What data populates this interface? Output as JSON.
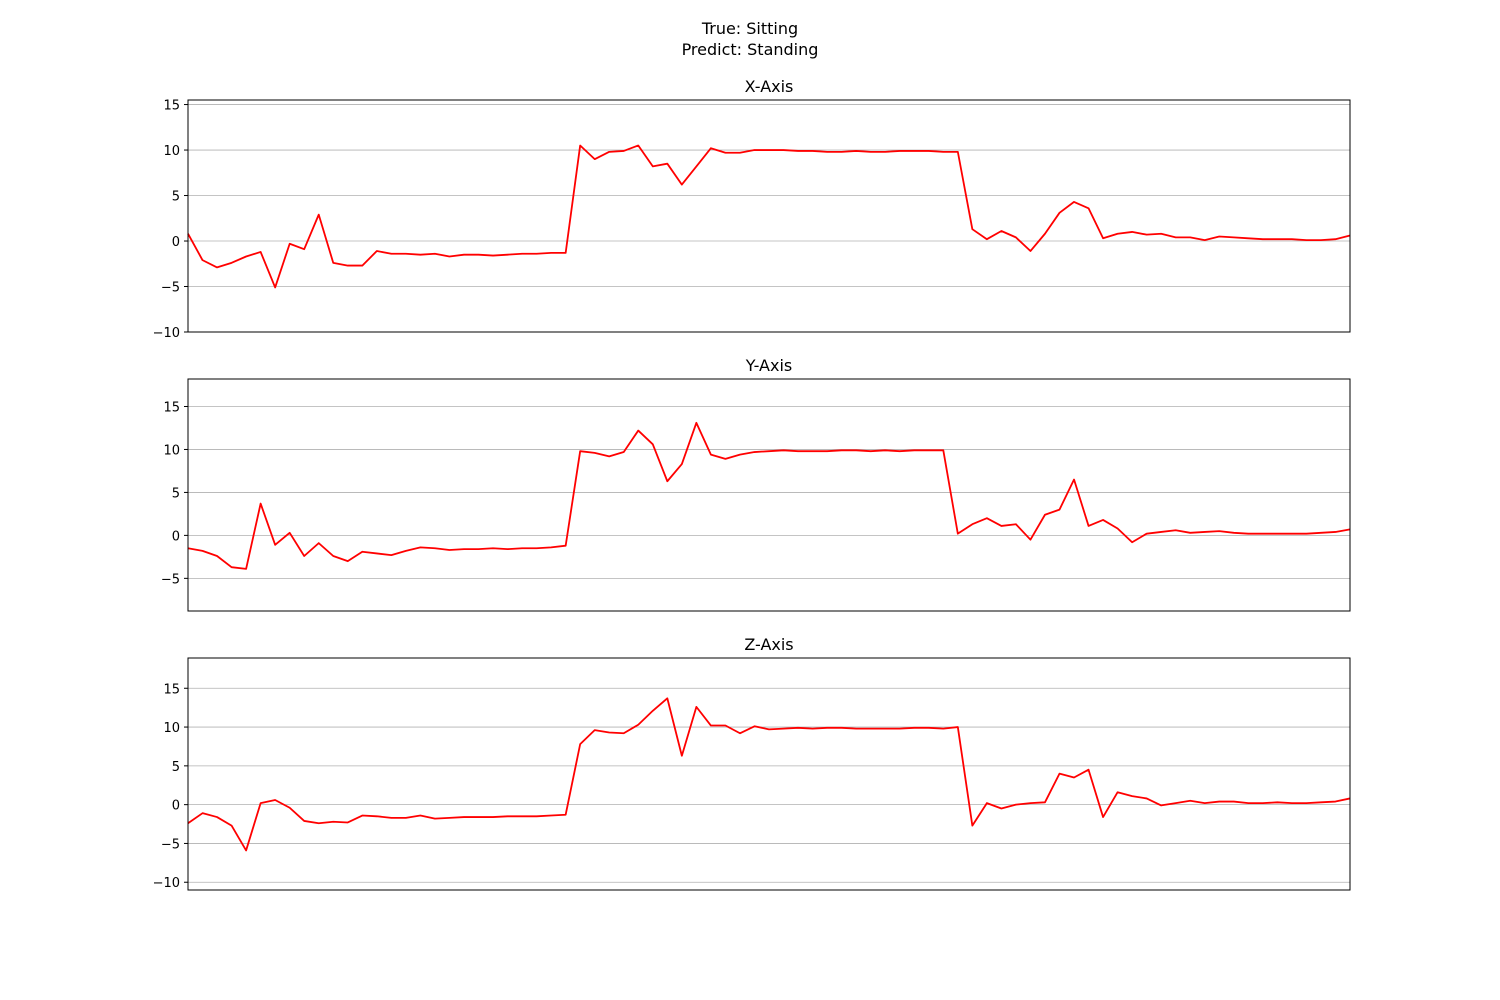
{
  "figure": {
    "title_line1": "True: Sitting",
    "title_line2": "Predict: Standing"
  },
  "chart_data": [
    {
      "type": "line",
      "title": "X-Axis",
      "ylim": [
        -10,
        15.5
      ],
      "yticks": [
        -10,
        -5,
        0,
        5,
        10,
        15
      ],
      "grid": true,
      "color": "#ff0000",
      "values": [
        0.8,
        -2.1,
        -2.9,
        -2.4,
        -1.7,
        -1.2,
        -5.1,
        -0.3,
        -0.9,
        2.9,
        -2.4,
        -2.7,
        -2.7,
        -1.1,
        -1.4,
        -1.4,
        -1.5,
        -1.4,
        -1.7,
        -1.5,
        -1.5,
        -1.6,
        -1.5,
        -1.4,
        -1.4,
        -1.3,
        -1.3,
        10.5,
        9.0,
        9.8,
        9.9,
        10.5,
        8.2,
        8.5,
        6.2,
        8.2,
        10.2,
        9.7,
        9.7,
        10.0,
        10.0,
        10.0,
        9.9,
        9.9,
        9.8,
        9.8,
        9.9,
        9.8,
        9.8,
        9.9,
        9.9,
        9.9,
        9.8,
        9.8,
        1.3,
        0.2,
        1.1,
        0.4,
        -1.1,
        0.8,
        3.1,
        4.3,
        3.6,
        0.3,
        0.8,
        1.0,
        0.7,
        0.8,
        0.4,
        0.4,
        0.1,
        0.5,
        0.4,
        0.3,
        0.2,
        0.2,
        0.2,
        0.1,
        0.1,
        0.2,
        0.6
      ]
    },
    {
      "type": "line",
      "title": "Y-Axis",
      "ylim": [
        -8.8,
        18.2
      ],
      "yticks": [
        -5,
        0,
        5,
        10,
        15
      ],
      "grid": true,
      "color": "#ff0000",
      "values": [
        -1.5,
        -1.8,
        -2.4,
        -3.7,
        -3.9,
        3.7,
        -1.1,
        0.3,
        -2.4,
        -0.9,
        -2.4,
        -3.0,
        -1.9,
        -2.1,
        -2.3,
        -1.8,
        -1.4,
        -1.5,
        -1.7,
        -1.6,
        -1.6,
        -1.5,
        -1.6,
        -1.5,
        -1.5,
        -1.4,
        -1.2,
        9.8,
        9.6,
        9.2,
        9.7,
        12.2,
        10.6,
        6.3,
        8.3,
        13.1,
        9.4,
        8.9,
        9.4,
        9.7,
        9.8,
        9.9,
        9.8,
        9.8,
        9.8,
        9.9,
        9.9,
        9.8,
        9.9,
        9.8,
        9.9,
        9.9,
        9.9,
        0.2,
        1.3,
        2.0,
        1.1,
        1.3,
        -0.5,
        2.4,
        3.0,
        6.5,
        1.1,
        1.8,
        0.8,
        -0.8,
        0.2,
        0.4,
        0.6,
        0.3,
        0.4,
        0.5,
        0.3,
        0.2,
        0.2,
        0.2,
        0.2,
        0.2,
        0.3,
        0.4,
        0.7
      ]
    },
    {
      "type": "line",
      "title": "Z-Axis",
      "ylim": [
        -11,
        18.9
      ],
      "yticks": [
        -10,
        -5,
        0,
        5,
        10,
        15
      ],
      "grid": true,
      "color": "#ff0000",
      "values": [
        -2.4,
        -1.1,
        -1.6,
        -2.7,
        -5.9,
        0.2,
        0.6,
        -0.4,
        -2.1,
        -2.4,
        -2.2,
        -2.3,
        -1.4,
        -1.5,
        -1.7,
        -1.7,
        -1.4,
        -1.8,
        -1.7,
        -1.6,
        -1.6,
        -1.6,
        -1.5,
        -1.5,
        -1.5,
        -1.4,
        -1.3,
        7.8,
        9.6,
        9.3,
        9.2,
        10.3,
        12.1,
        13.7,
        6.3,
        12.6,
        10.2,
        10.2,
        9.2,
        10.1,
        9.7,
        9.8,
        9.9,
        9.8,
        9.9,
        9.9,
        9.8,
        9.8,
        9.8,
        9.8,
        9.9,
        9.9,
        9.8,
        10.0,
        -2.7,
        0.2,
        -0.5,
        0.0,
        0.2,
        0.3,
        4.0,
        3.5,
        4.5,
        -1.6,
        1.6,
        1.1,
        0.8,
        -0.1,
        0.2,
        0.5,
        0.2,
        0.4,
        0.4,
        0.2,
        0.2,
        0.3,
        0.2,
        0.2,
        0.3,
        0.4,
        0.8
      ]
    }
  ]
}
